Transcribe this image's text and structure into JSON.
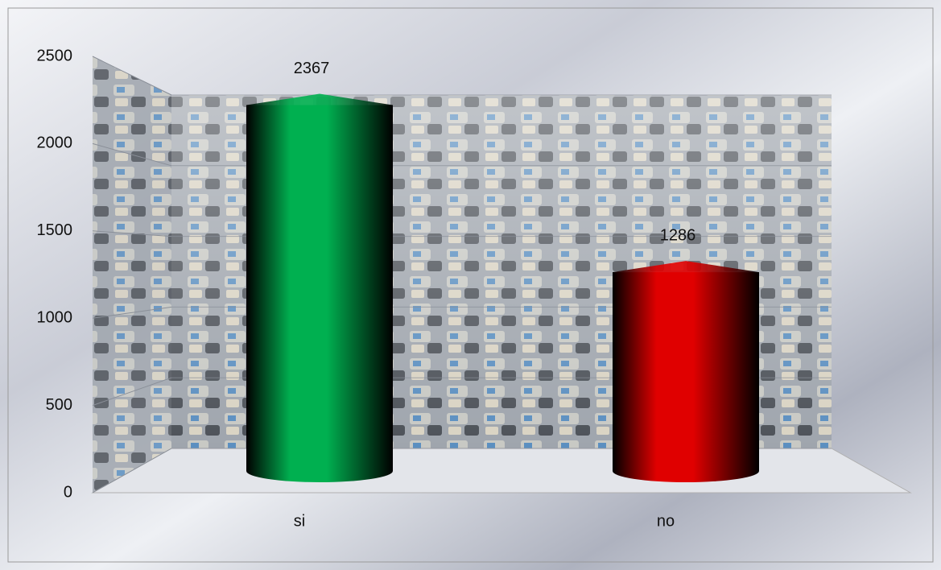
{
  "chart_data": {
    "type": "bar",
    "categories": [
      "si",
      "no"
    ],
    "values": [
      2367,
      1286
    ],
    "colors": [
      "#00b050",
      "#e00000"
    ],
    "ylim": [
      0,
      2500
    ],
    "yticks": [
      0,
      500,
      1000,
      1500,
      2000,
      2500
    ],
    "grid": true
  }
}
